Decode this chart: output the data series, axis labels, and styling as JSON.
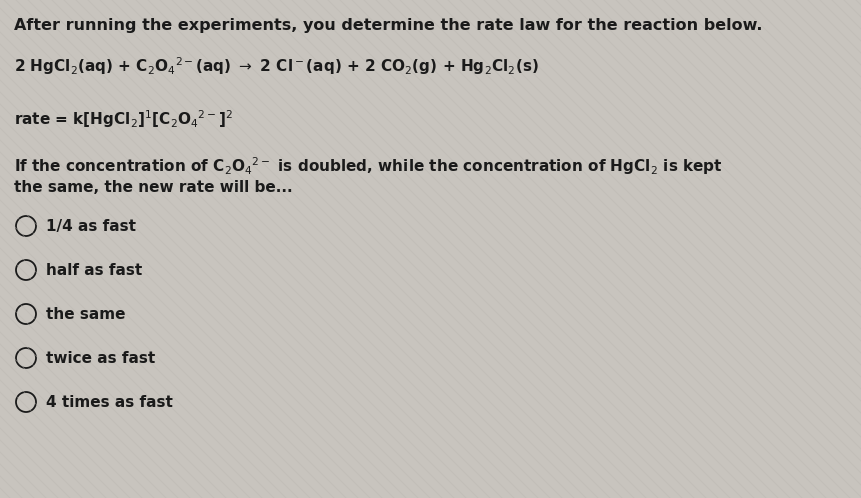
{
  "background_color": "#c8c4be",
  "text_color": "#1a1a1a",
  "font_size_title": 11.5,
  "font_size_body": 11,
  "font_size_options": 11,
  "options": [
    "1/4 as fast",
    "half as fast",
    "the same",
    "twice as fast",
    "4 times as fast"
  ]
}
